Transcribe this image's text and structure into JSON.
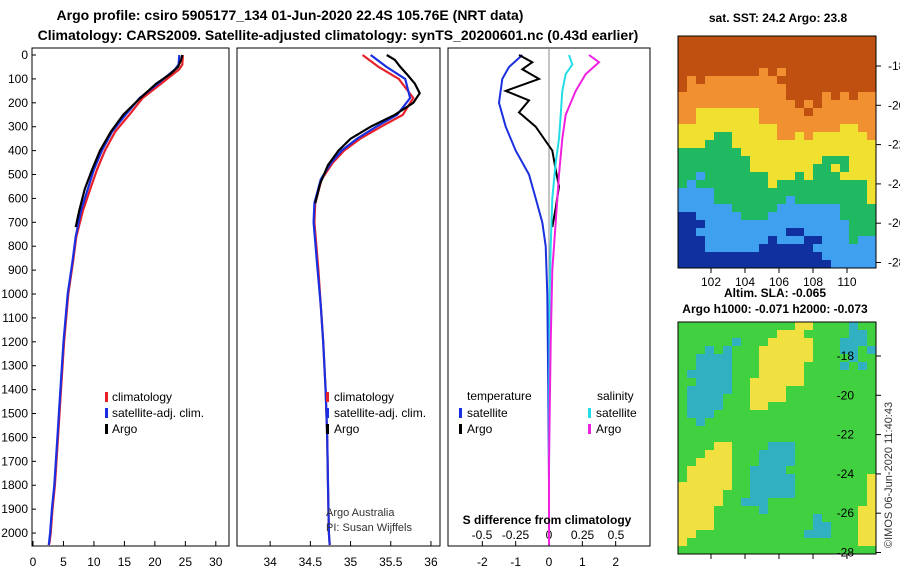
{
  "header": {
    "line1": "Argo profile: csiro 5905177_134 01-Jun-2020 22.4S 105.76E (NRT data)",
    "line2": "Climatology: CARS2009. Satellite-adjusted climatology: synTS_20200601.nc (0.43d earlier)"
  },
  "colors": {
    "climatology": "#e8202a",
    "satellite": "#1a2fe0",
    "argo": "#000000",
    "satellite_s": "#22dde8",
    "argo_s": "#f020e0"
  },
  "chart_data": [
    {
      "type": "line",
      "name": "temperature-profile",
      "xlim": [
        0,
        32
      ],
      "ylim": [
        0,
        2050
      ],
      "y_inverted": true,
      "xticks": [
        "0",
        "5",
        "10",
        "15",
        "20",
        "25",
        "30"
      ],
      "yticks": [
        "0",
        "100",
        "200",
        "300",
        "400",
        "500",
        "600",
        "700",
        "800",
        "900",
        "1000",
        "1100",
        "1200",
        "1300",
        "1400",
        "1500",
        "1600",
        "1700",
        "1800",
        "1900",
        "2000"
      ],
      "legend": [
        "climatology",
        "satellite-adj. clim.",
        "Argo"
      ],
      "series": [
        {
          "name": "climatology",
          "x": [
            24.6,
            24.5,
            24.0,
            21.0,
            18.0,
            15.8,
            13.5,
            11.8,
            10.5,
            9.4,
            8.2,
            7.1,
            6.6,
            5.8,
            5.1,
            4.6,
            4.1,
            3.6,
            3.2,
            2.9,
            2.7,
            2.6
          ],
          "y": [
            0,
            40,
            60,
            120,
            180,
            250,
            320,
            400,
            480,
            560,
            650,
            760,
            860,
            1000,
            1200,
            1400,
            1600,
            1800,
            1900,
            2000,
            2040,
            2050
          ]
        },
        {
          "name": "satellite-adj. clim.",
          "x": [
            24.0,
            23.9,
            23.3,
            20.5,
            17.5,
            15.2,
            13.0,
            11.3,
            10.0,
            9.0,
            7.9,
            7.0,
            6.5,
            5.7,
            5.0,
            4.5,
            4.0,
            3.5,
            3.1,
            2.8,
            2.6
          ],
          "y": [
            0,
            40,
            60,
            120,
            180,
            250,
            320,
            400,
            480,
            560,
            650,
            760,
            860,
            1000,
            1200,
            1400,
            1600,
            1800,
            1900,
            2000,
            2050
          ]
        },
        {
          "name": "Argo",
          "x": [
            24.5,
            24.3,
            23.8,
            22.5,
            20.2,
            17.6,
            14.8,
            12.8,
            11.0,
            9.7,
            8.5,
            7.6,
            7.0
          ],
          "y": [
            0,
            20,
            50,
            80,
            120,
            180,
            250,
            320,
            400,
            480,
            560,
            650,
            720
          ]
        }
      ]
    },
    {
      "type": "line",
      "name": "salinity-profile",
      "xlim": [
        33.6,
        36.1
      ],
      "ylim": [
        0,
        2050
      ],
      "y_inverted": true,
      "xticks": [
        "34",
        "34.5",
        "35",
        "35.5",
        "36"
      ],
      "legend": [
        "climatology",
        "satellite-adj. clim.",
        "Argo"
      ],
      "annotation": [
        "Argo Australia",
        "PI: Susan Wijffels"
      ],
      "series": [
        {
          "name": "climatology",
          "x": [
            35.15,
            35.35,
            35.6,
            35.78,
            35.65,
            35.38,
            35.12,
            34.92,
            34.78,
            34.64,
            34.56,
            34.55,
            34.57,
            34.6,
            34.63,
            34.66,
            34.69,
            34.71,
            34.72,
            34.73,
            34.74
          ],
          "y": [
            0,
            50,
            100,
            180,
            250,
            300,
            350,
            400,
            450,
            520,
            620,
            700,
            780,
            900,
            1050,
            1200,
            1400,
            1600,
            1800,
            2000,
            2050
          ]
        },
        {
          "name": "satellite-adj. clim.",
          "x": [
            35.25,
            35.45,
            35.68,
            35.74,
            35.58,
            35.32,
            35.08,
            34.89,
            34.76,
            34.63,
            34.55,
            34.54,
            34.56,
            34.59,
            34.63,
            34.66,
            34.69,
            34.71,
            34.72,
            34.73,
            34.74
          ],
          "y": [
            0,
            50,
            100,
            180,
            250,
            300,
            350,
            400,
            450,
            520,
            620,
            700,
            780,
            900,
            1050,
            1200,
            1400,
            1600,
            1800,
            2000,
            2050
          ]
        },
        {
          "name": "Argo",
          "x": [
            35.45,
            35.55,
            35.62,
            35.7,
            35.8,
            35.86,
            35.78,
            35.55,
            35.25,
            35.0,
            34.85,
            34.72,
            34.62,
            34.56
          ],
          "y": [
            0,
            20,
            50,
            80,
            120,
            160,
            200,
            250,
            300,
            350,
            400,
            460,
            540,
            620
          ]
        }
      ]
    },
    {
      "type": "line",
      "name": "difference-from-climatology",
      "xlim": [
        -3.0,
        3.0
      ],
      "ylim": [
        0,
        2050
      ],
      "y_inverted": true,
      "xticks_temperature": [
        "-2",
        "-1",
        "0",
        "1",
        "2"
      ],
      "xticks_salinity": [
        "-0.5",
        "-0.25",
        "0",
        "0.25",
        "0.5"
      ],
      "xlabel": "S difference from climatology",
      "legend_temperature": {
        "title": "temperature",
        "items": [
          "satellite",
          "Argo"
        ]
      },
      "legend_salinity": {
        "title": "salinity",
        "items": [
          "satellite",
          "Argo"
        ]
      },
      "series": [
        {
          "name": "temperature satellite",
          "x": [
            -0.8,
            -1.2,
            -1.4,
            -1.5,
            -1.3,
            -1.0,
            -0.6,
            -0.4,
            -0.2,
            -0.1,
            -0.05,
            -0.02,
            0,
            0
          ],
          "y": [
            0,
            50,
            100,
            200,
            300,
            400,
            500,
            600,
            700,
            800,
            1000,
            1400,
            1800,
            2050
          ]
        },
        {
          "name": "temperature Argo",
          "x": [
            -0.9,
            -0.5,
            -0.8,
            -0.3,
            -1.3,
            -0.6,
            -0.9,
            -0.4,
            0.1,
            0.2,
            0.3,
            0.2,
            0.1
          ],
          "y": [
            0,
            30,
            60,
            100,
            150,
            190,
            240,
            300,
            400,
            480,
            550,
            640,
            720
          ]
        },
        {
          "name": "salinity satellite",
          "x": [
            0.6,
            0.7,
            0.5,
            0.4,
            0.35,
            0.3,
            0.2,
            0.1,
            0.05,
            0.02,
            0.01,
            0,
            0
          ],
          "y": [
            0,
            40,
            80,
            150,
            250,
            350,
            450,
            600,
            800,
            1000,
            1400,
            1800,
            2050
          ]
        },
        {
          "name": "salinity Argo",
          "x": [
            1.2,
            1.5,
            1.1,
            0.8,
            0.5,
            0.4,
            0.3,
            0.2,
            0.1,
            0.05,
            0,
            0
          ],
          "y": [
            0,
            30,
            80,
            150,
            250,
            350,
            500,
            700,
            900,
            1200,
            1700,
            2050
          ]
        }
      ]
    },
    {
      "type": "heatmap",
      "name": "sst-map",
      "title": "sat. SST: 24.2 Argo: 23.8",
      "xticks": [
        "102",
        "104",
        "106",
        "108",
        "110"
      ],
      "yticks": [
        "-18",
        "-20",
        "-22",
        "-24",
        "-26",
        "-28"
      ],
      "lon_range": [
        100.2,
        111.8
      ],
      "lat_range": [
        -28.3,
        -16.6
      ],
      "colormap": [
        "#1030a0",
        "#3fa0f0",
        "#20b860",
        "#f0e030",
        "#f09030",
        "#c05010"
      ]
    },
    {
      "type": "heatmap",
      "name": "sla-map",
      "title": "Altim. SLA: -0.065",
      "subtitle": "Argo h1000: -0.071 h2000: -0.073",
      "yticks": [
        "-18",
        "-20",
        "-22",
        "-24",
        "-26",
        "-28"
      ],
      "lat_range": [
        -28.3,
        -16.6
      ],
      "colormap": [
        "#30b0c0",
        "#40d040",
        "#f0e040"
      ]
    }
  ],
  "footer": {
    "credit": "©IMOS 06-Jun-2020 11:40:43"
  }
}
